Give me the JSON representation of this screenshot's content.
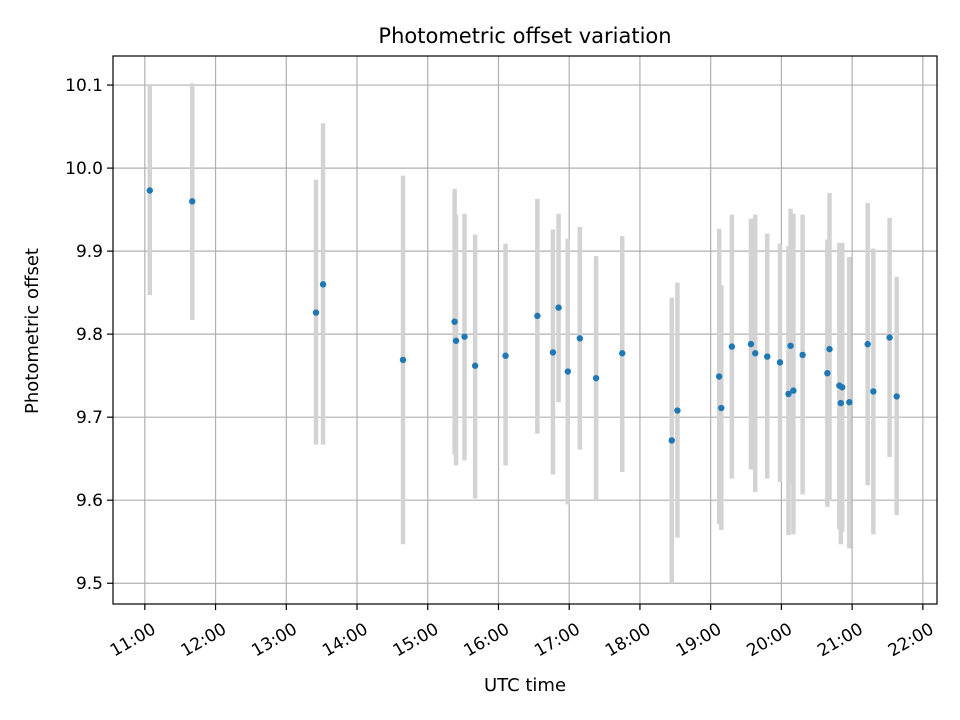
{
  "chart_data": {
    "type": "scatter",
    "title": "Photometric offset variation",
    "xlabel": "UTC time",
    "ylabel": "Photometric offset",
    "x_unit": "UTC hour of day",
    "xlim": [
      10.55,
      22.2
    ],
    "ylim": [
      9.475,
      10.135
    ],
    "x_ticks": [
      11,
      12,
      13,
      14,
      15,
      16,
      17,
      18,
      19,
      20,
      21,
      22
    ],
    "x_tick_labels": [
      "11:00",
      "12:00",
      "13:00",
      "14:00",
      "15:00",
      "16:00",
      "17:00",
      "18:00",
      "19:00",
      "20:00",
      "21:00",
      "22:00"
    ],
    "y_ticks": [
      9.5,
      9.6,
      9.7,
      9.8,
      9.9,
      10.0,
      10.1
    ],
    "y_tick_labels": [
      "9.5",
      "9.6",
      "9.7",
      "9.8",
      "9.9",
      "10.0",
      "10.1"
    ],
    "grid": true,
    "legend": "none",
    "colors": {
      "point": "#1f77b4",
      "errorbar": "#d3d3d3",
      "grid": "#b0b0b0"
    },
    "points": [
      {
        "x": 11.07,
        "y": 9.973,
        "ymin": 9.847,
        "ymax": 10.1
      },
      {
        "x": 11.67,
        "y": 9.96,
        "ymin": 9.817,
        "ymax": 10.102
      },
      {
        "x": 13.42,
        "y": 9.826,
        "ymin": 9.667,
        "ymax": 9.986
      },
      {
        "x": 13.52,
        "y": 9.86,
        "ymin": 9.667,
        "ymax": 10.054
      },
      {
        "x": 14.65,
        "y": 9.769,
        "ymin": 9.547,
        "ymax": 9.991
      },
      {
        "x": 15.38,
        "y": 9.815,
        "ymin": 9.655,
        "ymax": 9.975
      },
      {
        "x": 15.4,
        "y": 9.792,
        "ymin": 9.642,
        "ymax": 9.944
      },
      {
        "x": 15.52,
        "y": 9.797,
        "ymin": 9.648,
        "ymax": 9.945
      },
      {
        "x": 15.67,
        "y": 9.762,
        "ymin": 9.602,
        "ymax": 9.92
      },
      {
        "x": 16.1,
        "y": 9.774,
        "ymin": 9.642,
        "ymax": 9.909
      },
      {
        "x": 16.55,
        "y": 9.822,
        "ymin": 9.68,
        "ymax": 9.963
      },
      {
        "x": 16.77,
        "y": 9.778,
        "ymin": 9.631,
        "ymax": 9.926
      },
      {
        "x": 16.85,
        "y": 9.832,
        "ymin": 9.718,
        "ymax": 9.945
      },
      {
        "x": 16.98,
        "y": 9.755,
        "ymin": 9.595,
        "ymax": 9.915
      },
      {
        "x": 17.15,
        "y": 9.795,
        "ymin": 9.661,
        "ymax": 9.929
      },
      {
        "x": 17.38,
        "y": 9.747,
        "ymin": 9.6,
        "ymax": 9.894
      },
      {
        "x": 17.75,
        "y": 9.777,
        "ymin": 9.634,
        "ymax": 9.918
      },
      {
        "x": 18.45,
        "y": 9.672,
        "ymin": 9.5,
        "ymax": 9.844
      },
      {
        "x": 18.53,
        "y": 9.708,
        "ymin": 9.555,
        "ymax": 9.862
      },
      {
        "x": 19.12,
        "y": 9.749,
        "ymin": 9.571,
        "ymax": 9.927
      },
      {
        "x": 19.15,
        "y": 9.711,
        "ymin": 9.564,
        "ymax": 9.859
      },
      {
        "x": 19.3,
        "y": 9.785,
        "ymin": 9.626,
        "ymax": 9.944
      },
      {
        "x": 19.57,
        "y": 9.788,
        "ymin": 9.637,
        "ymax": 9.939
      },
      {
        "x": 19.63,
        "y": 9.777,
        "ymin": 9.61,
        "ymax": 9.944
      },
      {
        "x": 19.8,
        "y": 9.773,
        "ymin": 9.626,
        "ymax": 9.921
      },
      {
        "x": 19.98,
        "y": 9.766,
        "ymin": 9.622,
        "ymax": 9.909
      },
      {
        "x": 20.1,
        "y": 9.728,
        "ymin": 9.558,
        "ymax": 9.906
      },
      {
        "x": 20.13,
        "y": 9.786,
        "ymin": 9.62,
        "ymax": 9.951
      },
      {
        "x": 20.17,
        "y": 9.732,
        "ymin": 9.559,
        "ymax": 9.945
      },
      {
        "x": 20.3,
        "y": 9.775,
        "ymin": 9.607,
        "ymax": 9.944
      },
      {
        "x": 20.65,
        "y": 9.753,
        "ymin": 9.592,
        "ymax": 9.914
      },
      {
        "x": 20.68,
        "y": 9.782,
        "ymin": 9.599,
        "ymax": 9.97
      },
      {
        "x": 20.82,
        "y": 9.738,
        "ymin": 9.565,
        "ymax": 9.91
      },
      {
        "x": 20.84,
        "y": 9.717,
        "ymin": 9.547,
        "ymax": 9.89
      },
      {
        "x": 20.86,
        "y": 9.736,
        "ymin": 9.562,
        "ymax": 9.91
      },
      {
        "x": 20.96,
        "y": 9.718,
        "ymin": 9.542,
        "ymax": 9.893
      },
      {
        "x": 21.22,
        "y": 9.788,
        "ymin": 9.618,
        "ymax": 9.958
      },
      {
        "x": 21.3,
        "y": 9.731,
        "ymin": 9.559,
        "ymax": 9.903
      },
      {
        "x": 21.53,
        "y": 9.796,
        "ymin": 9.652,
        "ymax": 9.94
      },
      {
        "x": 21.63,
        "y": 9.725,
        "ymin": 9.582,
        "ymax": 9.869
      }
    ]
  }
}
